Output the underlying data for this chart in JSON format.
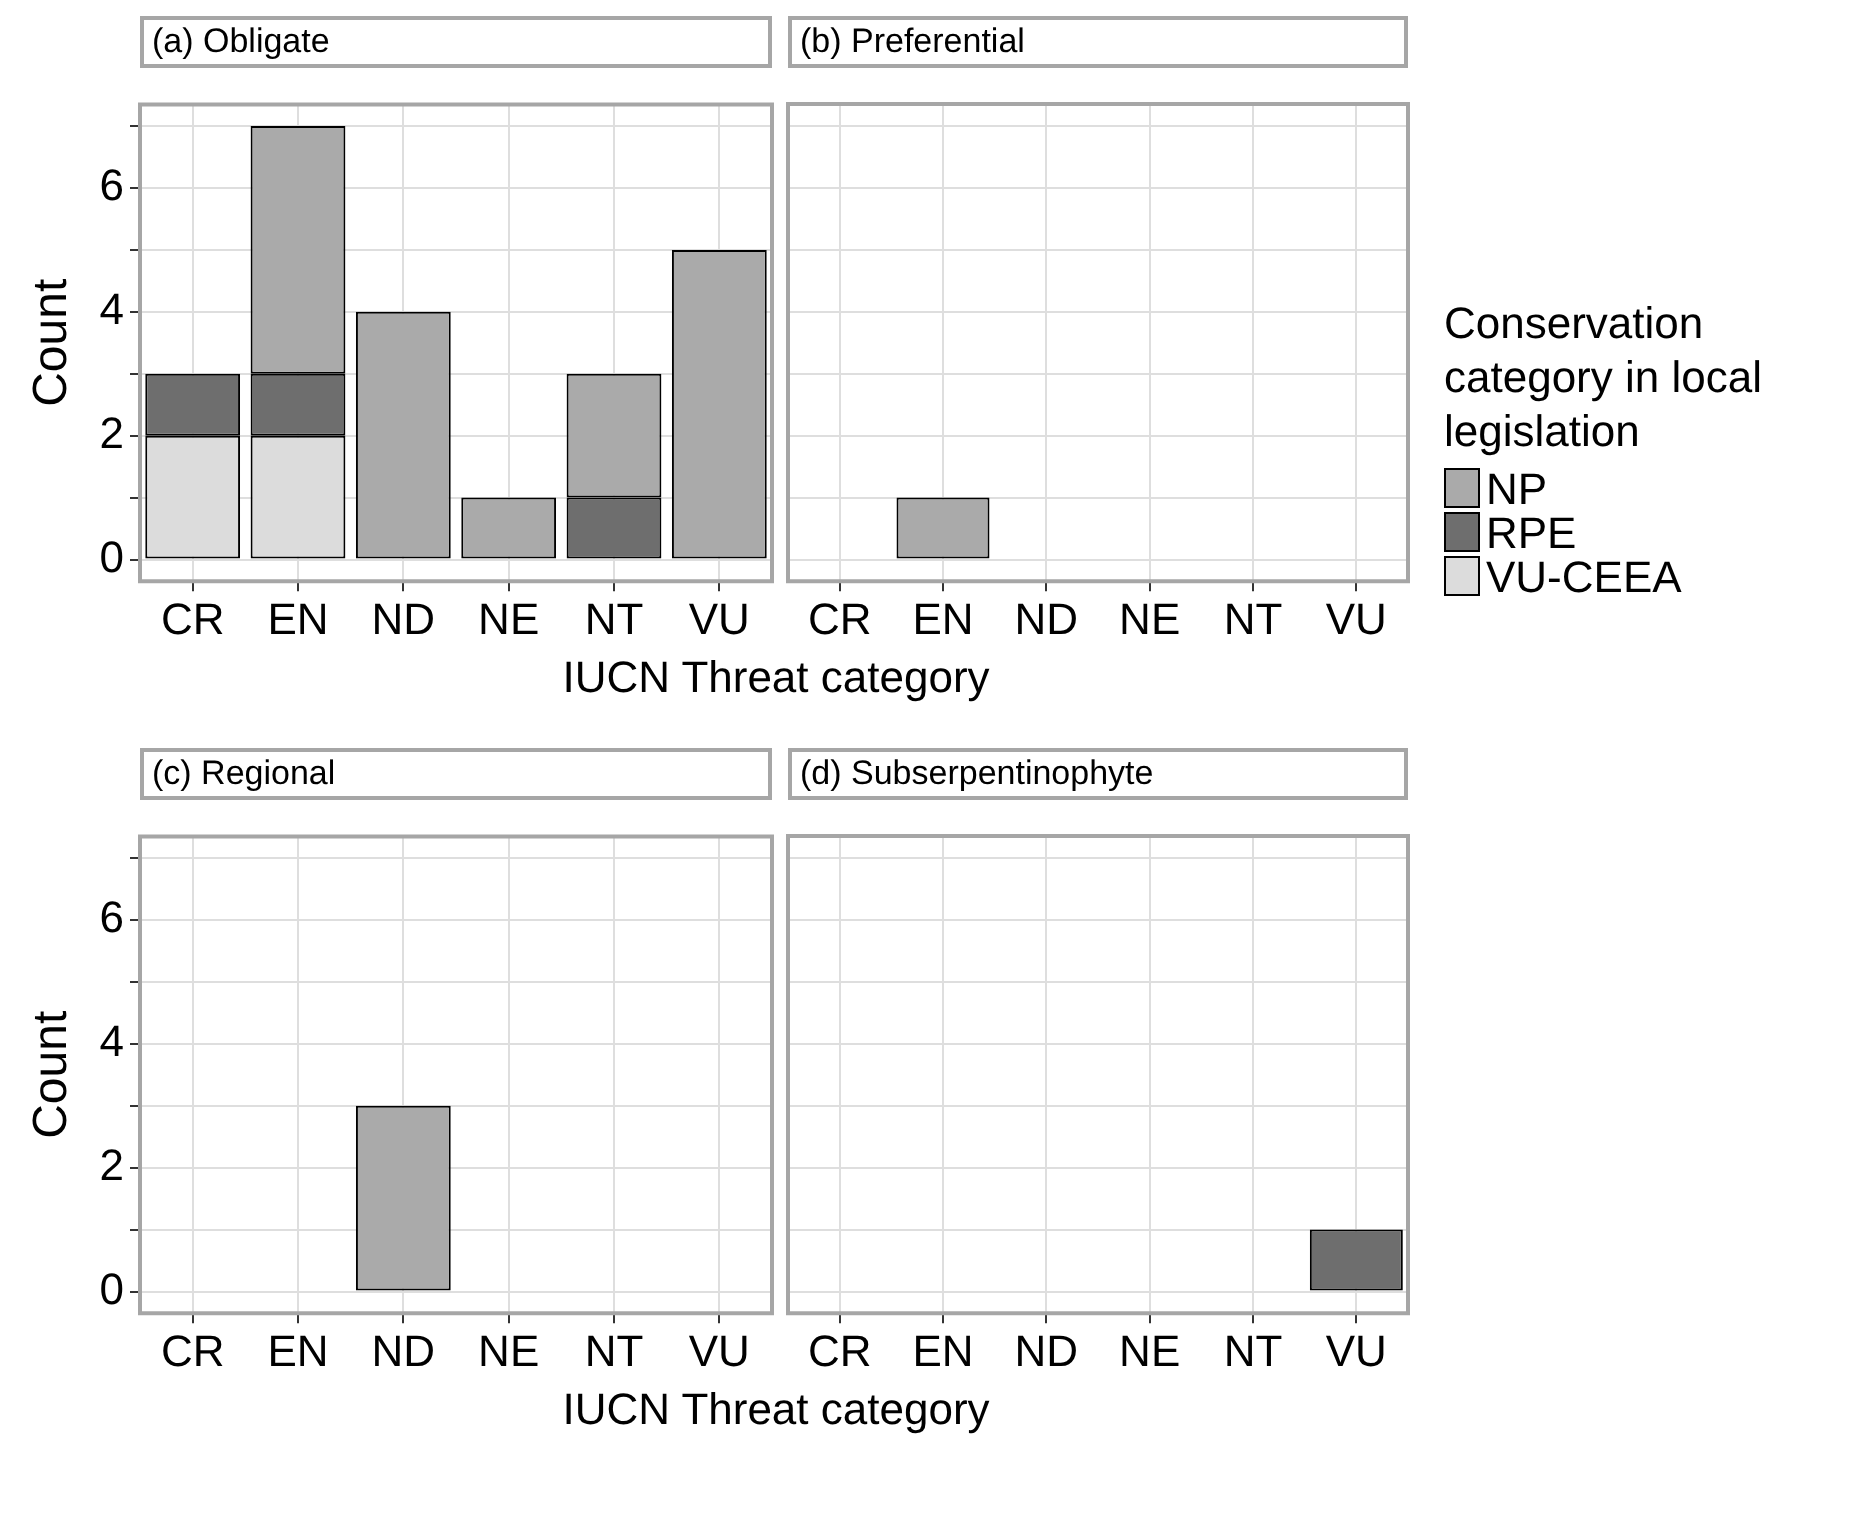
{
  "chart_data": [
    {
      "type": "bar",
      "title": "(a) Obligate",
      "xlabel": "IUCN Threat category",
      "ylabel": "Count",
      "categories": [
        "CR",
        "EN",
        "ND",
        "NE",
        "NT",
        "VU"
      ],
      "stacked": true,
      "ylim": [
        -0.35,
        7.35
      ],
      "yticks": [
        0,
        {
          "value": 1,
          "label": null
        },
        2,
        {
          "value": 3,
          "label": null
        },
        4,
        {
          "value": 5,
          "label": null
        },
        6,
        {
          "value": 7,
          "label": null
        }
      ],
      "grid": true,
      "legend": "right",
      "legend_title": "Conservation category in local legislation",
      "series": [
        {
          "name": "VU-CEEA",
          "color": "#dcdcdc",
          "values": [
            2,
            2,
            0,
            0,
            0,
            0
          ]
        },
        {
          "name": "RPE",
          "color": "#6e6e6e",
          "values": [
            1,
            1,
            0,
            0,
            1,
            0
          ]
        },
        {
          "name": "NP",
          "color": "#aaaaaa",
          "values": [
            0,
            4,
            4,
            1,
            2,
            5
          ]
        }
      ]
    },
    {
      "type": "bar",
      "title": "(b) Preferential",
      "categories": [
        "CR",
        "EN",
        "ND",
        "NE",
        "NT",
        "VU"
      ],
      "stacked": true,
      "ylim": [
        -0.35,
        7.35
      ],
      "yticks": [
        0,
        {
          "value": 1,
          "label": null
        },
        2,
        {
          "value": 3,
          "label": null
        },
        4,
        {
          "value": 5,
          "label": null
        },
        6,
        {
          "value": 7,
          "label": null
        }
      ],
      "grid": true,
      "tick_labels": "x",
      "series": [
        {
          "color": "#dcdcdc",
          "values": [
            0,
            0,
            0,
            0,
            0,
            0
          ]
        },
        {
          "color": "#6e6e6e",
          "values": [
            0,
            0,
            0,
            0,
            0,
            0
          ]
        },
        {
          "color": "#aaaaaa",
          "values": [
            0,
            1,
            0,
            0,
            0,
            0
          ]
        }
      ]
    },
    {
      "type": "bar",
      "title": "(c) Regional",
      "xlabel": "IUCN Threat category",
      "ylabel": "Count",
      "categories": [
        "CR",
        "EN",
        "ND",
        "NE",
        "NT",
        "VU"
      ],
      "stacked": true,
      "ylim": [
        -0.35,
        7.35
      ],
      "yticks": [
        0,
        {
          "value": 1,
          "label": null
        },
        2,
        {
          "value": 3,
          "label": null
        },
        4,
        {
          "value": 5,
          "label": null
        },
        6,
        {
          "value": 7,
          "label": null
        }
      ],
      "grid": true,
      "series": [
        {
          "color": "#dcdcdc",
          "values": [
            0,
            0,
            0,
            0,
            0,
            0
          ]
        },
        {
          "color": "#6e6e6e",
          "values": [
            0,
            0,
            0,
            0,
            0,
            0
          ]
        },
        {
          "color": "#aaaaaa",
          "values": [
            0,
            0,
            3,
            0,
            0,
            0
          ]
        }
      ]
    },
    {
      "type": "bar",
      "title": "(d) Subserpentinophyte",
      "categories": [
        "CR",
        "EN",
        "ND",
        "NE",
        "NT",
        "VU"
      ],
      "stacked": true,
      "ylim": [
        -0.35,
        7.35
      ],
      "yticks": [
        0,
        {
          "value": 1,
          "label": null
        },
        2,
        {
          "value": 3,
          "label": null
        },
        4,
        {
          "value": 5,
          "label": null
        },
        6,
        {
          "value": 7,
          "label": null
        }
      ],
      "grid": true,
      "tick_labels": "x",
      "series": [
        {
          "color": "#dcdcdc",
          "values": [
            0,
            0,
            0,
            0,
            0,
            0
          ]
        },
        {
          "color": "#6e6e6e",
          "values": [
            0,
            0,
            0,
            0,
            0,
            1
          ]
        },
        {
          "color": "#aaaaaa",
          "values": [
            0,
            0,
            0,
            0,
            0,
            0
          ]
        }
      ]
    }
  ]
}
